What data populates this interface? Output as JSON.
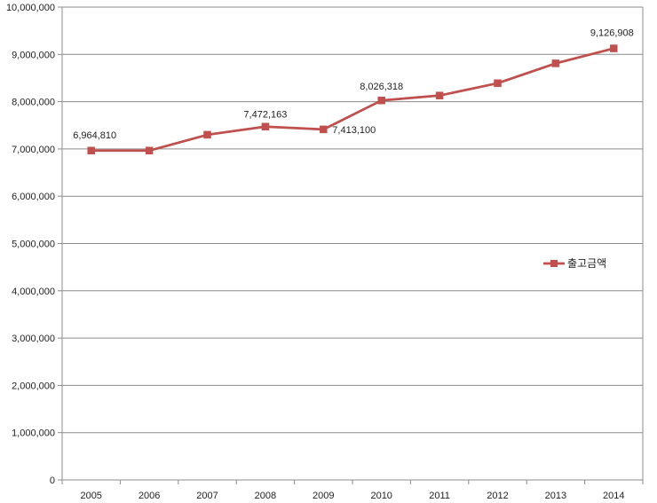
{
  "chart_data": {
    "type": "line",
    "title": "",
    "xlabel": "",
    "ylabel": "",
    "categories": [
      "2005",
      "2006",
      "2007",
      "2008",
      "2009",
      "2010",
      "2011",
      "2012",
      "2013",
      "2014"
    ],
    "series": [
      {
        "name": "출고금액",
        "values": [
          6964810,
          6965000,
          7300000,
          7472163,
          7413100,
          8026318,
          8130000,
          8390000,
          8810000,
          9126908
        ],
        "color": "#c0504d"
      }
    ],
    "ylim": [
      0,
      10000000
    ],
    "yticks": [
      0,
      1000000,
      2000000,
      3000000,
      4000000,
      5000000,
      6000000,
      7000000,
      8000000,
      9000000,
      10000000
    ],
    "ytick_labels": [
      "0",
      "1,000,000",
      "2,000,000",
      "3,000,000",
      "4,000,000",
      "5,000,000",
      "6,000,000",
      "7,000,000",
      "8,000,000",
      "9,000,000",
      "10,000,000"
    ],
    "data_labels": [
      {
        "category": "2005",
        "text": "6,964,810"
      },
      {
        "category": "2008",
        "text": "7,472,163"
      },
      {
        "category": "2009",
        "text": "7,413,100"
      },
      {
        "category": "2010",
        "text": "8,026,318"
      },
      {
        "category": "2014",
        "text": "9,126,908"
      }
    ],
    "grid": true,
    "legend_position": "right"
  }
}
